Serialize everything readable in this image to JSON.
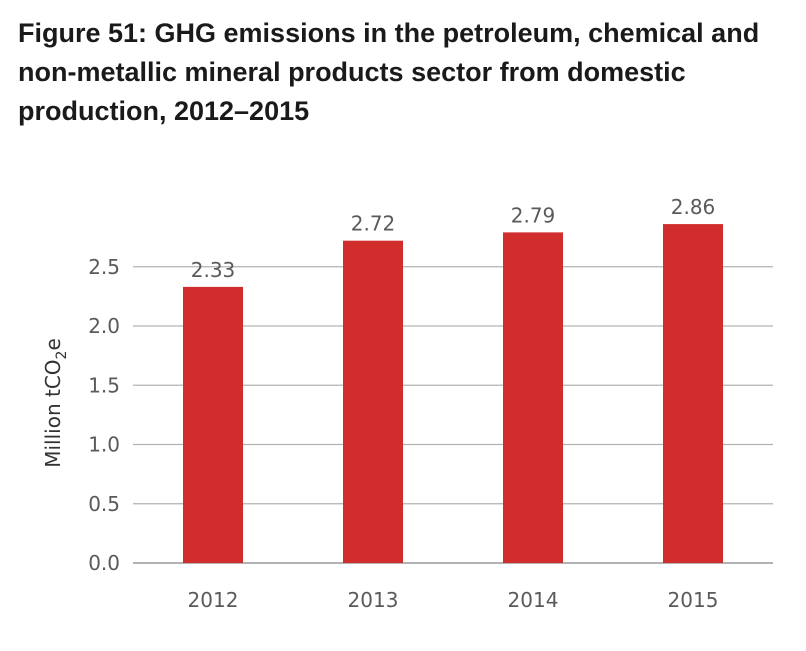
{
  "chart_data": {
    "type": "bar",
    "title": "Figure 51: GHG emissions in the petroleum, chemical and non-metallic mineral products sector from domestic production, 2012–2015",
    "xlabel": "",
    "ylabel": "Million tCO",
    "ylabel_sub": "2",
    "ylabel_tail": "e",
    "categories": [
      "2012",
      "2013",
      "2014",
      "2015"
    ],
    "values": [
      2.33,
      2.72,
      2.79,
      2.86
    ],
    "value_labels": [
      "2.33",
      "2.72",
      "2.79",
      "2.86"
    ],
    "yticks": [
      "0.0",
      "0.5",
      "1.0",
      "1.5",
      "2.0",
      "2.5"
    ],
    "ylim": [
      0,
      2.86
    ],
    "grid": true,
    "legend": "none",
    "bar_color": "#d12d2d"
  }
}
